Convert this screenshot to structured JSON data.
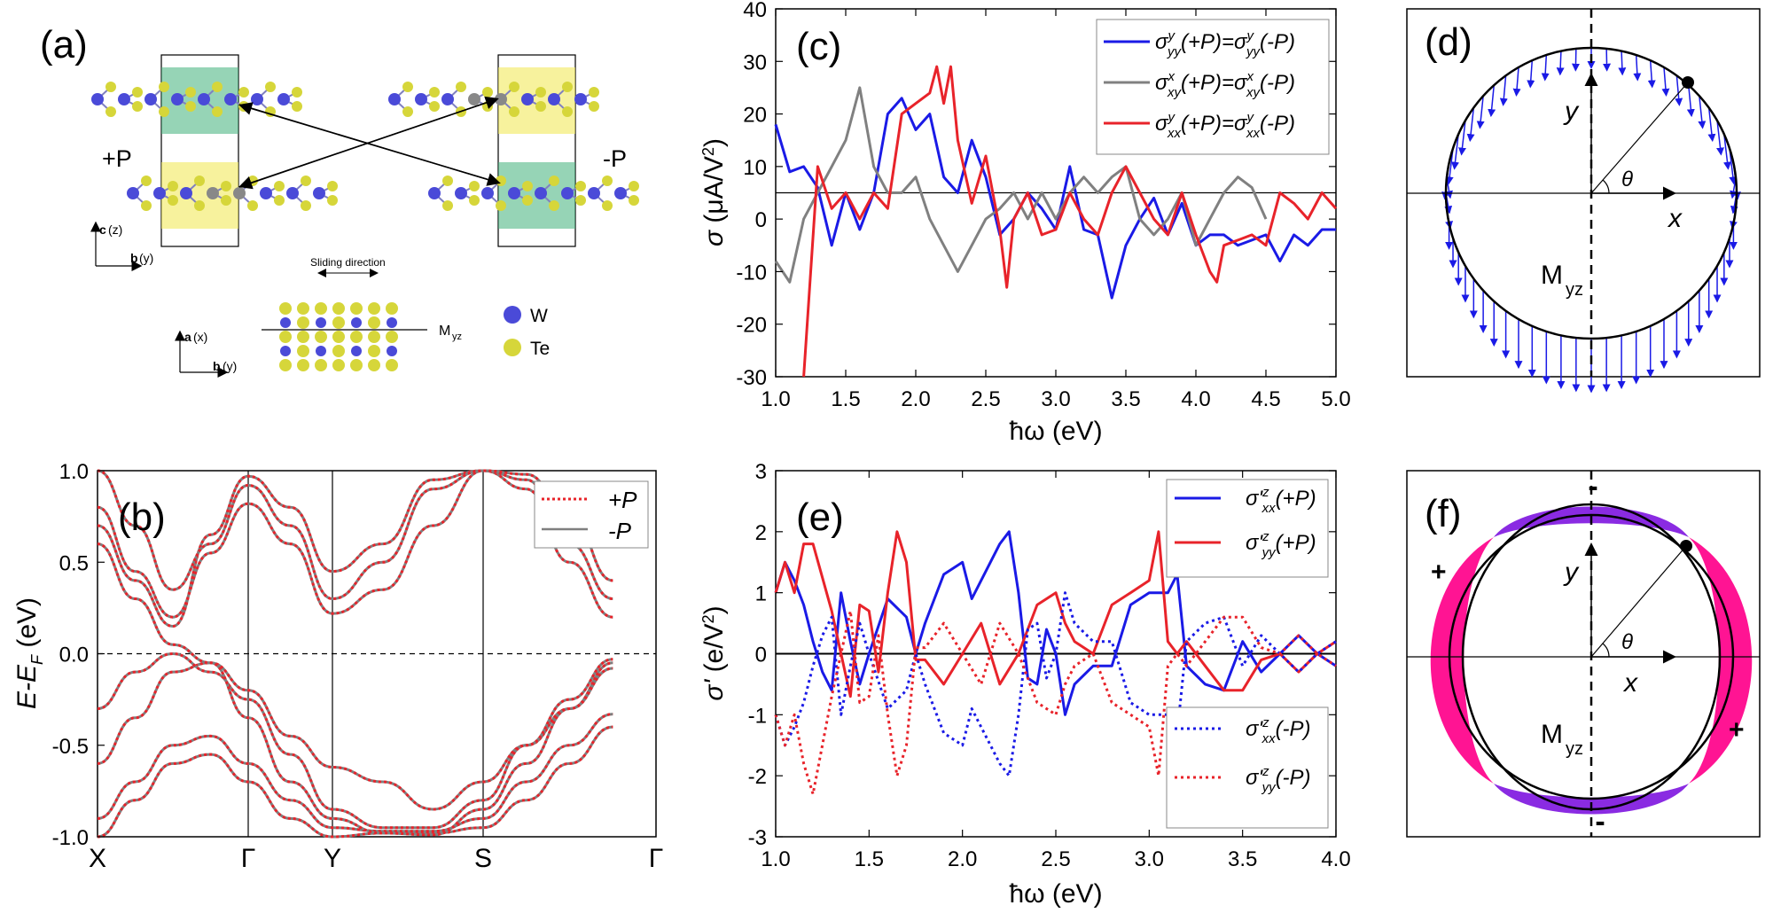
{
  "panels": {
    "a": {
      "label": "(a)",
      "plus_p": "+P",
      "minus_p": "-P",
      "axis_c": "c",
      "axis_c_sub": "(z)",
      "axis_b": "b",
      "axis_b_sub": "(y)",
      "axis_a": "a",
      "axis_a_sub": "(x)",
      "sliding": "Sliding direction",
      "mirror": "M",
      "mirror_sub": "yz",
      "legend": [
        {
          "name": "W",
          "color": "#4a4ad8"
        },
        {
          "name": "Te",
          "color": "#d6d63a"
        }
      ]
    },
    "d": {
      "label": "(d)",
      "y": "y",
      "x": "x",
      "theta": "θ",
      "mirror": "M",
      "mirror_sub": "yz"
    },
    "f": {
      "label": "(f)",
      "y": "y",
      "x": "x",
      "theta": "θ",
      "mirror": "M",
      "mirror_sub": "yz",
      "signs": [
        "-",
        "+",
        "+",
        "-"
      ]
    }
  },
  "chart_data": [
    {
      "panel": "(b)",
      "type": "line",
      "title": "",
      "xlabel": "",
      "ylabel": "E-E_F (eV)",
      "ylim": [
        -1.0,
        1.0
      ],
      "xticks": [
        "X",
        "Γ",
        "Y",
        "S",
        "Γ"
      ],
      "yticks": [
        "-1.0",
        "-0.5",
        "0.0",
        "0.5",
        "1.0"
      ],
      "legend": [
        {
          "name": "+P",
          "style": "dotted",
          "color": "#e8232a"
        },
        {
          "name": "-P",
          "style": "solid",
          "color": "#7f7f7f"
        }
      ],
      "bands": [
        [
          -1.0,
          -0.8,
          -0.6,
          -0.55,
          -0.7,
          -0.9,
          -1.0,
          -0.98,
          -0.98,
          -0.95,
          -0.8,
          -0.6,
          -0.4
        ],
        [
          -0.9,
          -0.7,
          -0.5,
          -0.45,
          -0.6,
          -0.8,
          -0.95,
          -0.97,
          -0.97,
          -0.9,
          -0.7,
          -0.5,
          -0.33
        ],
        [
          -0.6,
          -0.35,
          -0.1,
          -0.05,
          -0.2,
          -0.45,
          -0.62,
          -0.7,
          -0.85,
          -0.7,
          -0.5,
          -0.3,
          -0.05
        ],
        [
          -0.3,
          -0.1,
          0.0,
          -0.1,
          -0.25,
          -0.55,
          -0.85,
          -0.95,
          -0.95,
          -0.8,
          -0.5,
          -0.25,
          -0.03
        ],
        [
          0.6,
          0.3,
          0.05,
          -0.05,
          -0.35,
          -0.7,
          -0.9,
          -0.98,
          -0.99,
          -0.85,
          -0.6,
          -0.3,
          -0.08
        ],
        [
          0.7,
          0.4,
          0.15,
          0.65,
          0.97,
          0.8,
          0.45,
          0.6,
          0.95,
          1.0,
          0.9,
          0.5,
          0.2
        ],
        [
          0.8,
          0.45,
          0.2,
          0.55,
          0.82,
          0.6,
          0.22,
          0.35,
          0.7,
          1.0,
          0.95,
          0.6,
          0.3
        ],
        [
          1.0,
          0.7,
          0.35,
          0.6,
          0.92,
          0.7,
          0.3,
          0.5,
          0.9,
          1.0,
          0.98,
          0.75,
          0.4
        ]
      ]
    },
    {
      "panel": "(c)",
      "type": "line",
      "xlabel": "ħω (eV)",
      "ylabel": "σ (μA/V²)",
      "xlim": [
        1.0,
        5.0
      ],
      "ylim": [
        -30,
        40
      ],
      "xticks": [
        "1.0",
        "1.5",
        "2.0",
        "2.5",
        "3.0",
        "3.5",
        "4.0",
        "4.5",
        "5.0"
      ],
      "yticks": [
        "-30",
        "-20",
        "-10",
        "0",
        "10",
        "20",
        "30",
        "40"
      ],
      "series": [
        {
          "name": "σ^y_yy(+P)=σ^y_yy(-P)",
          "color": "#1a1ae6",
          "x": [
            1.0,
            1.1,
            1.2,
            1.3,
            1.4,
            1.5,
            1.6,
            1.7,
            1.8,
            1.9,
            2.0,
            2.1,
            2.2,
            2.3,
            2.4,
            2.5,
            2.6,
            2.7,
            2.8,
            2.9,
            3.0,
            3.1,
            3.2,
            3.3,
            3.4,
            3.5,
            3.6,
            3.7,
            3.8,
            3.9,
            4.0,
            4.1,
            4.2,
            4.3,
            4.4,
            4.5,
            4.6,
            4.7,
            4.8,
            4.9,
            5.0
          ],
          "y": [
            18,
            9,
            10,
            6,
            -5,
            5,
            -2,
            5,
            20,
            23,
            17,
            20,
            8,
            5,
            15,
            8,
            -3,
            0,
            5,
            2,
            -2,
            10,
            -2,
            -3,
            -15,
            -5,
            0,
            4,
            -3,
            3,
            -5,
            -3,
            -3,
            -5,
            -4,
            -3,
            -8,
            -3,
            -5,
            -2,
            -2
          ]
        },
        {
          "name": "σ^x_xy(+P)=σ^x_xy(-P)",
          "color": "#808080",
          "x": [
            1.0,
            1.1,
            1.2,
            1.3,
            1.4,
            1.5,
            1.6,
            1.7,
            1.8,
            1.9,
            2.0,
            2.1,
            2.2,
            2.3,
            2.4,
            2.5,
            2.6,
            2.7,
            2.8,
            2.9,
            3.0,
            3.1,
            3.2,
            3.3,
            3.4,
            3.5,
            3.6,
            3.7,
            3.8,
            3.9,
            4.0,
            4.1,
            4.2,
            4.3,
            4.4,
            4.5
          ],
          "y": [
            -8,
            -12,
            0,
            5,
            10,
            15,
            25,
            10,
            5,
            5,
            8,
            0,
            -5,
            -10,
            -5,
            0,
            2,
            5,
            0,
            5,
            0,
            5,
            8,
            5,
            8,
            10,
            0,
            -3,
            0,
            5,
            -5,
            0,
            5,
            8,
            6,
            0
          ]
        },
        {
          "name": "σ^y_xx(+P)=σ^y_xx(-P)",
          "color": "#e8232a",
          "x": [
            1.2,
            1.25,
            1.3,
            1.4,
            1.5,
            1.6,
            1.7,
            1.8,
            1.9,
            2.0,
            2.1,
            2.15,
            2.2,
            2.25,
            2.3,
            2.4,
            2.5,
            2.6,
            2.65,
            2.7,
            2.8,
            2.9,
            3.0,
            3.1,
            3.2,
            3.3,
            3.4,
            3.5,
            3.6,
            3.7,
            3.8,
            3.9,
            4.0,
            4.1,
            4.15,
            4.2,
            4.3,
            4.4,
            4.5,
            4.6,
            4.7,
            4.8,
            4.9,
            5.0
          ],
          "y": [
            -30,
            -10,
            10,
            2,
            5,
            0,
            5,
            2,
            20,
            22,
            24,
            29,
            22,
            29,
            15,
            3,
            12,
            -2,
            -13,
            0,
            5,
            -3,
            -2,
            5,
            0,
            -3,
            5,
            10,
            5,
            0,
            -3,
            5,
            -3,
            -10,
            -12,
            -5,
            -4,
            -3,
            -5,
            5,
            3,
            0,
            5,
            2
          ]
        }
      ],
      "hline": 5
    },
    {
      "panel": "(e)",
      "type": "line",
      "xlabel": "ħω (eV)",
      "ylabel": "σ' (e/V²)",
      "xlim": [
        1.0,
        4.0
      ],
      "ylim": [
        -3,
        3
      ],
      "xticks": [
        "1.0",
        "1.5",
        "2.0",
        "2.5",
        "3.0",
        "3.5",
        "4.0"
      ],
      "yticks": [
        "-3",
        "-2",
        "-1",
        "0",
        "1",
        "2",
        "3"
      ],
      "series": [
        {
          "name": "σ'^z_xx(+P)",
          "color": "#1a1ae6",
          "style": "solid",
          "x": [
            1.0,
            1.05,
            1.1,
            1.15,
            1.2,
            1.25,
            1.3,
            1.35,
            1.4,
            1.45,
            1.5,
            1.6,
            1.7,
            1.75,
            1.8,
            1.9,
            2.0,
            2.05,
            2.1,
            2.2,
            2.25,
            2.3,
            2.35,
            2.4,
            2.45,
            2.5,
            2.55,
            2.6,
            2.7,
            2.8,
            2.9,
            3.0,
            3.1,
            3.15,
            3.2,
            3.3,
            3.4,
            3.5,
            3.6,
            3.7,
            3.8,
            3.9,
            4.0
          ],
          "y": [
            1.0,
            1.5,
            1.2,
            0.8,
            0.2,
            -0.3,
            -0.6,
            1.0,
            0.2,
            -0.5,
            0.0,
            0.9,
            0.6,
            0.0,
            0.5,
            1.3,
            1.5,
            0.9,
            1.2,
            1.8,
            2.0,
            1.0,
            -0.4,
            -0.5,
            0.4,
            0.0,
            -1.0,
            -0.5,
            -0.2,
            -0.2,
            0.8,
            1.0,
            1.0,
            1.3,
            -0.2,
            -0.5,
            -0.6,
            0.2,
            -0.3,
            0.0,
            0.3,
            0.0,
            -0.2
          ]
        },
        {
          "name": "σ'^z_yy(+P)",
          "color": "#e8232a",
          "style": "solid",
          "x": [
            1.0,
            1.05,
            1.1,
            1.15,
            1.2,
            1.3,
            1.35,
            1.4,
            1.45,
            1.5,
            1.55,
            1.6,
            1.65,
            1.7,
            1.75,
            1.8,
            1.9,
            2.0,
            2.1,
            2.2,
            2.3,
            2.4,
            2.5,
            2.55,
            2.6,
            2.7,
            2.8,
            2.9,
            3.0,
            3.05,
            3.1,
            3.15,
            3.2,
            3.3,
            3.4,
            3.5,
            3.6,
            3.7,
            3.8,
            3.9,
            4.0
          ],
          "y": [
            1.0,
            1.5,
            1.0,
            1.8,
            1.8,
            0.7,
            0.0,
            -0.7,
            0.8,
            0.7,
            -0.3,
            1.0,
            2.0,
            1.5,
            -0.1,
            -0.1,
            -0.5,
            0.0,
            0.5,
            -0.5,
            0.0,
            0.8,
            1.0,
            0.5,
            0.2,
            0.0,
            0.8,
            1.0,
            1.2,
            2.0,
            0.2,
            0.0,
            0.2,
            -0.2,
            -0.6,
            -0.6,
            -0.1,
            0.0,
            -0.3,
            0.0,
            0.2
          ]
        },
        {
          "name": "σ'^z_xx(-P)",
          "color": "#1a1ae6",
          "style": "dotted",
          "x": [
            1.0,
            1.05,
            1.1,
            1.15,
            1.2,
            1.25,
            1.3,
            1.35,
            1.4,
            1.45,
            1.5,
            1.6,
            1.7,
            1.75,
            1.8,
            1.9,
            2.0,
            2.05,
            2.1,
            2.2,
            2.25,
            2.3,
            2.35,
            2.4,
            2.45,
            2.5,
            2.55,
            2.6,
            2.7,
            2.8,
            2.9,
            3.0,
            3.1,
            3.15,
            3.2,
            3.3,
            3.4,
            3.5,
            3.6,
            3.7,
            3.8,
            3.9,
            4.0
          ],
          "y": [
            -1.0,
            -1.5,
            -1.2,
            -0.8,
            -0.2,
            0.3,
            0.6,
            -1.0,
            -0.2,
            0.5,
            0.0,
            -0.9,
            -0.6,
            0.0,
            -0.5,
            -1.3,
            -1.5,
            -0.9,
            -1.2,
            -1.8,
            -2.0,
            -1.0,
            0.4,
            0.5,
            -0.4,
            0.0,
            1.0,
            0.5,
            0.2,
            0.2,
            -0.8,
            -1.0,
            -1.0,
            -1.3,
            0.2,
            0.5,
            0.6,
            -0.2,
            0.3,
            0.0,
            -0.3,
            0.0,
            0.2
          ]
        },
        {
          "name": "σ'^z_yy(-P)",
          "color": "#e8232a",
          "style": "dotted",
          "x": [
            1.0,
            1.05,
            1.1,
            1.15,
            1.2,
            1.3,
            1.35,
            1.4,
            1.45,
            1.5,
            1.55,
            1.6,
            1.65,
            1.7,
            1.75,
            1.8,
            1.9,
            2.0,
            2.1,
            2.2,
            2.3,
            2.4,
            2.5,
            2.55,
            2.6,
            2.7,
            2.8,
            2.9,
            3.0,
            3.05,
            3.1,
            3.15,
            3.2,
            3.3,
            3.4,
            3.5,
            3.6,
            3.7,
            3.8,
            3.9,
            4.0
          ],
          "y": [
            -1.0,
            -1.5,
            -1.0,
            -1.8,
            -2.3,
            -0.7,
            0.0,
            0.7,
            -0.8,
            -0.7,
            0.3,
            -1.0,
            -2.0,
            -1.5,
            0.1,
            0.1,
            0.5,
            0.0,
            -0.5,
            0.5,
            0.0,
            -0.8,
            -1.0,
            -0.5,
            -0.2,
            0.0,
            -0.8,
            -1.0,
            -1.2,
            -2.0,
            -0.2,
            0.0,
            -0.2,
            0.2,
            0.6,
            0.6,
            0.1,
            0.0,
            0.3,
            0.0,
            -0.2
          ]
        }
      ],
      "hline": 0
    }
  ]
}
